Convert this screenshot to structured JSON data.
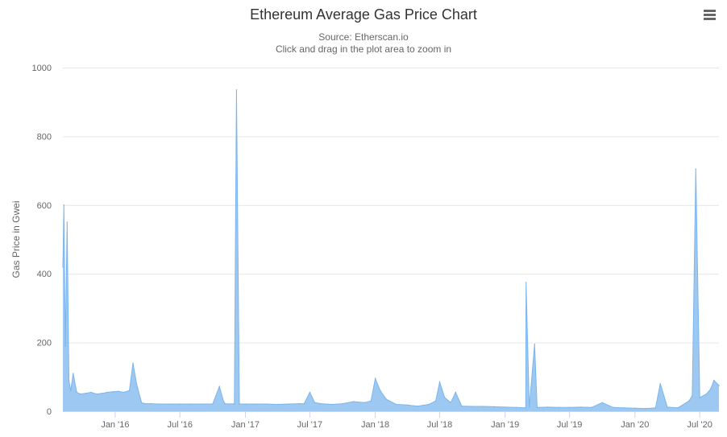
{
  "chart_data": {
    "type": "area",
    "title": "Ethereum Average Gas Price Chart",
    "subtitle": "Source: Etherscan.io",
    "subtitle2": "Click and drag in the plot area to zoom in",
    "xlabel": "",
    "ylabel": "Gas Price in Gwei",
    "xlim": [
      "2015-08-07",
      "2020-08-24"
    ],
    "ylim": [
      0,
      1000
    ],
    "y_ticks": [
      0,
      200,
      400,
      600,
      800,
      1000
    ],
    "x_ticks": [
      {
        "date": "2016-01-01",
        "label": "Jan '16"
      },
      {
        "date": "2016-07-01",
        "label": "Jul '16"
      },
      {
        "date": "2017-01-01",
        "label": "Jan '17"
      },
      {
        "date": "2017-07-01",
        "label": "Jul '17"
      },
      {
        "date": "2018-01-01",
        "label": "Jan '18"
      },
      {
        "date": "2018-07-01",
        "label": "Jul '18"
      },
      {
        "date": "2019-01-01",
        "label": "Jan '19"
      },
      {
        "date": "2019-07-01",
        "label": "Jul '19"
      },
      {
        "date": "2020-01-01",
        "label": "Jan '20"
      },
      {
        "date": "2020-07-01",
        "label": "Jul '20"
      }
    ],
    "grid": true,
    "legend": "none",
    "color": "#7cb5ec",
    "series": [
      {
        "x": [
          "2015-08-07",
          "2015-08-10",
          "2015-08-14",
          "2015-08-19",
          "2015-08-24",
          "2015-08-29",
          "2015-09-05",
          "2015-09-15",
          "2015-09-25",
          "2015-10-10",
          "2015-10-25",
          "2015-11-10",
          "2015-11-25",
          "2015-12-10",
          "2015-12-25",
          "2016-01-10",
          "2016-01-25",
          "2016-02-10",
          "2016-02-20",
          "2016-03-01",
          "2016-03-15",
          "2016-03-25",
          "2016-04-10",
          "2016-05-01",
          "2016-06-01",
          "2016-07-01",
          "2016-08-01",
          "2016-09-01",
          "2016-10-01",
          "2016-10-20",
          "2016-11-01",
          "2016-11-05",
          "2016-11-15",
          "2016-12-01",
          "2016-12-07",
          "2016-12-15",
          "2017-01-01",
          "2017-02-01",
          "2017-03-01",
          "2017-04-01",
          "2017-05-01",
          "2017-06-01",
          "2017-06-15",
          "2017-07-01",
          "2017-07-15",
          "2017-08-01",
          "2017-09-01",
          "2017-10-01",
          "2017-11-01",
          "2017-12-01",
          "2017-12-20",
          "2018-01-01",
          "2018-01-15",
          "2018-02-01",
          "2018-03-01",
          "2018-04-01",
          "2018-05-01",
          "2018-06-01",
          "2018-06-20",
          "2018-07-01",
          "2018-07-15",
          "2018-08-01",
          "2018-08-15",
          "2018-09-01",
          "2018-10-01",
          "2018-11-01",
          "2018-12-01",
          "2019-01-01",
          "2019-02-01",
          "2019-02-28",
          "2019-03-01",
          "2019-03-10",
          "2019-03-25",
          "2019-04-01",
          "2019-05-01",
          "2019-06-01",
          "2019-07-01",
          "2019-08-01",
          "2019-09-01",
          "2019-10-01",
          "2019-11-01",
          "2019-12-01",
          "2020-01-01",
          "2020-02-01",
          "2020-02-28",
          "2020-03-12",
          "2020-04-01",
          "2020-05-01",
          "2020-06-01",
          "2020-06-10",
          "2020-06-20",
          "2020-07-01",
          "2020-07-20",
          "2020-08-01",
          "2020-08-10",
          "2020-08-24"
        ],
        "y": [
          420,
          600,
          190,
          550,
          90,
          60,
          110,
          55,
          50,
          52,
          55,
          50,
          52,
          55,
          57,
          58,
          55,
          60,
          140,
          80,
          25,
          22,
          22,
          21,
          21,
          21,
          21,
          21,
          21,
          72,
          28,
          22,
          21,
          22,
          935,
          21,
          21,
          21,
          21,
          20,
          21,
          22,
          22,
          55,
          25,
          22,
          20,
          22,
          28,
          25,
          30,
          95,
          60,
          35,
          20,
          18,
          15,
          20,
          30,
          85,
          40,
          25,
          55,
          15,
          14,
          14,
          13,
          12,
          11,
          10,
          375,
          12,
          195,
          11,
          12,
          11,
          11,
          12,
          11,
          25,
          11,
          10,
          9,
          8,
          10,
          80,
          12,
          10,
          30,
          45,
          705,
          40,
          50,
          65,
          90,
          75
        ]
      }
    ]
  }
}
